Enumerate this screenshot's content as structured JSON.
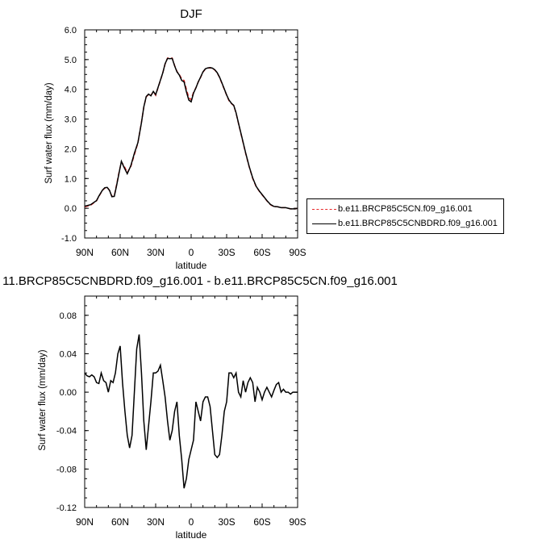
{
  "chart_data": [
    {
      "type": "line",
      "title": "DJF",
      "xlabel": "latitude",
      "ylabel": "Surf water flux (mm/day)",
      "xlim": [
        90,
        -90
      ],
      "ylim": [
        -1.0,
        6.0
      ],
      "xticks": [
        90,
        60,
        30,
        0,
        -30,
        -60,
        -90
      ],
      "xtick_labels": [
        "90N",
        "60N",
        "30N",
        "0",
        "30S",
        "60S",
        "90S"
      ],
      "yticks": [
        -1.0,
        0.0,
        1.0,
        2.0,
        3.0,
        4.0,
        5.0,
        6.0
      ],
      "ytick_labels": [
        "-1.0",
        "0.0",
        "1.0",
        "2.0",
        "3.0",
        "4.0",
        "5.0",
        "6.0"
      ],
      "legend_position": "right",
      "series": [
        {
          "name": "b.e11.BRCP85C5CN.f09_g16.001",
          "color": "#e8282a",
          "style": "dashed",
          "x": [
            90,
            85,
            80,
            78,
            75,
            73,
            71,
            69,
            67,
            65,
            63,
            61,
            59,
            57,
            54,
            51,
            48,
            45,
            42,
            40,
            38,
            36,
            34,
            32,
            30,
            28,
            26,
            24,
            22,
            20,
            18,
            16,
            14,
            12,
            10,
            8,
            6,
            4,
            2,
            0,
            -2,
            -4,
            -6,
            -8,
            -10,
            -12,
            -14,
            -16,
            -18,
            -20,
            -22,
            -24,
            -26,
            -28,
            -30,
            -32,
            -34,
            -36,
            -38,
            -40,
            -43,
            -46,
            -49,
            -52,
            -55,
            -58,
            -61,
            -64,
            -67,
            -70,
            -73,
            -76,
            -80,
            -84,
            -88,
            -90
          ],
          "values": [
            0.05,
            0.1,
            0.25,
            0.4,
            0.6,
            0.68,
            0.7,
            0.6,
            0.4,
            0.42,
            0.8,
            1.2,
            1.55,
            1.45,
            1.2,
            1.4,
            1.8,
            2.2,
            2.9,
            3.4,
            3.75,
            3.82,
            3.8,
            3.92,
            3.8,
            4.05,
            4.3,
            4.55,
            4.85,
            5.05,
            5.05,
            5.05,
            4.8,
            4.6,
            4.5,
            4.35,
            4.3,
            4.0,
            3.72,
            3.65,
            3.9,
            4.05,
            4.25,
            4.4,
            4.58,
            4.68,
            4.72,
            4.72,
            4.7,
            4.65,
            4.55,
            4.4,
            4.2,
            4.0,
            3.8,
            3.62,
            3.52,
            3.45,
            3.2,
            2.85,
            2.35,
            1.85,
            1.4,
            1.0,
            0.72,
            0.55,
            0.4,
            0.25,
            0.12,
            0.05,
            0.05,
            0.02,
            0.02,
            -0.02,
            -0.02,
            0.0
          ]
        },
        {
          "name": "b.e11.BRCP85C5CNBDRD.f09_g16.001",
          "color": "#000000",
          "style": "solid",
          "x": [
            90,
            85,
            80,
            78,
            75,
            73,
            71,
            69,
            67,
            65,
            63,
            61,
            59,
            57,
            54,
            51,
            48,
            45,
            42,
            40,
            38,
            36,
            34,
            32,
            30,
            28,
            26,
            24,
            22,
            20,
            18,
            16,
            14,
            12,
            10,
            8,
            6,
            4,
            2,
            0,
            -2,
            -4,
            -6,
            -8,
            -10,
            -12,
            -14,
            -16,
            -18,
            -20,
            -22,
            -24,
            -26,
            -28,
            -30,
            -32,
            -34,
            -36,
            -38,
            -40,
            -43,
            -46,
            -49,
            -52,
            -55,
            -58,
            -61,
            -64,
            -67,
            -70,
            -73,
            -76,
            -80,
            -84,
            -88,
            -90
          ],
          "values": [
            0.07,
            0.12,
            0.26,
            0.41,
            0.61,
            0.69,
            0.7,
            0.6,
            0.39,
            0.4,
            0.77,
            1.17,
            1.58,
            1.4,
            1.16,
            1.43,
            1.85,
            2.21,
            2.88,
            3.41,
            3.76,
            3.84,
            3.78,
            3.93,
            3.82,
            4.06,
            4.31,
            4.55,
            4.86,
            5.04,
            5.03,
            5.04,
            4.79,
            4.59,
            4.48,
            4.3,
            4.25,
            3.92,
            3.64,
            3.58,
            3.87,
            4.05,
            4.25,
            4.41,
            4.59,
            4.69,
            4.72,
            4.73,
            4.71,
            4.66,
            4.56,
            4.41,
            4.22,
            4.01,
            3.81,
            3.64,
            3.53,
            3.46,
            3.21,
            2.86,
            2.37,
            1.87,
            1.41,
            1.02,
            0.73,
            0.56,
            0.41,
            0.26,
            0.13,
            0.06,
            0.05,
            0.02,
            0.02,
            -0.02,
            -0.02,
            0.0
          ]
        }
      ]
    },
    {
      "type": "line",
      "title": "11.BRCP85C5CNBDRD.f09_g16.001 - b.e11.BRCP85C5CN.f09_g16.001",
      "xlabel": "latitude",
      "ylabel": "Surf water flux (mm/day)",
      "xlim": [
        90,
        -90
      ],
      "ylim": [
        -0.12,
        0.1
      ],
      "xticks": [
        90,
        60,
        30,
        0,
        -30,
        -60,
        -90
      ],
      "xtick_labels": [
        "90N",
        "60N",
        "30N",
        "0",
        "30S",
        "60S",
        "90S"
      ],
      "yticks": [
        -0.12,
        -0.08,
        -0.04,
        0.0,
        0.04,
        0.08
      ],
      "ytick_labels": [
        "-0.12",
        "-0.08",
        "-0.04",
        "0.00",
        "0.04",
        "0.08"
      ],
      "series": [
        {
          "color": "#000000",
          "style": "solid",
          "x": [
            90,
            88,
            86,
            84,
            82,
            80,
            78,
            76,
            74,
            72,
            70,
            68,
            66,
            64,
            62,
            60,
            58,
            56,
            54,
            52,
            50,
            48,
            46,
            44,
            42,
            40,
            38,
            36,
            34,
            32,
            30,
            28,
            26,
            24,
            22,
            20,
            18,
            16,
            14,
            12,
            10,
            8,
            6,
            4,
            2,
            0,
            -2,
            -4,
            -6,
            -8,
            -10,
            -12,
            -14,
            -16,
            -18,
            -20,
            -22,
            -24,
            -26,
            -28,
            -30,
            -32,
            -34,
            -36,
            -38,
            -40,
            -42,
            -44,
            -46,
            -48,
            -50,
            -52,
            -54,
            -56,
            -58,
            -60,
            -62,
            -64,
            -66,
            -68,
            -70,
            -72,
            -74,
            -76,
            -78,
            -80,
            -82,
            -84,
            -86,
            -88,
            -90
          ],
          "values": [
            0.02,
            0.017,
            0.016,
            0.018,
            0.016,
            0.01,
            0.009,
            0.02,
            0.012,
            0.01,
            0.0,
            0.012,
            0.01,
            0.02,
            0.04,
            0.048,
            0.01,
            -0.02,
            -0.045,
            -0.058,
            -0.045,
            0.0,
            0.045,
            0.06,
            0.02,
            -0.03,
            -0.06,
            -0.035,
            -0.01,
            0.02,
            0.02,
            0.022,
            0.028,
            0.012,
            -0.005,
            -0.03,
            -0.05,
            -0.04,
            -0.02,
            -0.01,
            -0.045,
            -0.07,
            -0.1,
            -0.09,
            -0.07,
            -0.06,
            -0.05,
            -0.01,
            -0.02,
            -0.03,
            -0.01,
            -0.005,
            -0.005,
            -0.015,
            -0.04,
            -0.065,
            -0.068,
            -0.065,
            -0.045,
            -0.02,
            -0.01,
            0.02,
            0.02,
            0.015,
            0.02,
            0.0,
            -0.005,
            0.012,
            0.0,
            0.01,
            0.015,
            0.01,
            -0.01,
            0.005,
            0.0,
            -0.008,
            0.0,
            0.005,
            0.0,
            -0.005,
            0.002,
            0.008,
            0.01,
            0.0,
            0.003,
            0.0,
            0.0,
            -0.002,
            0.0,
            0.0,
            0.0
          ]
        }
      ]
    }
  ]
}
